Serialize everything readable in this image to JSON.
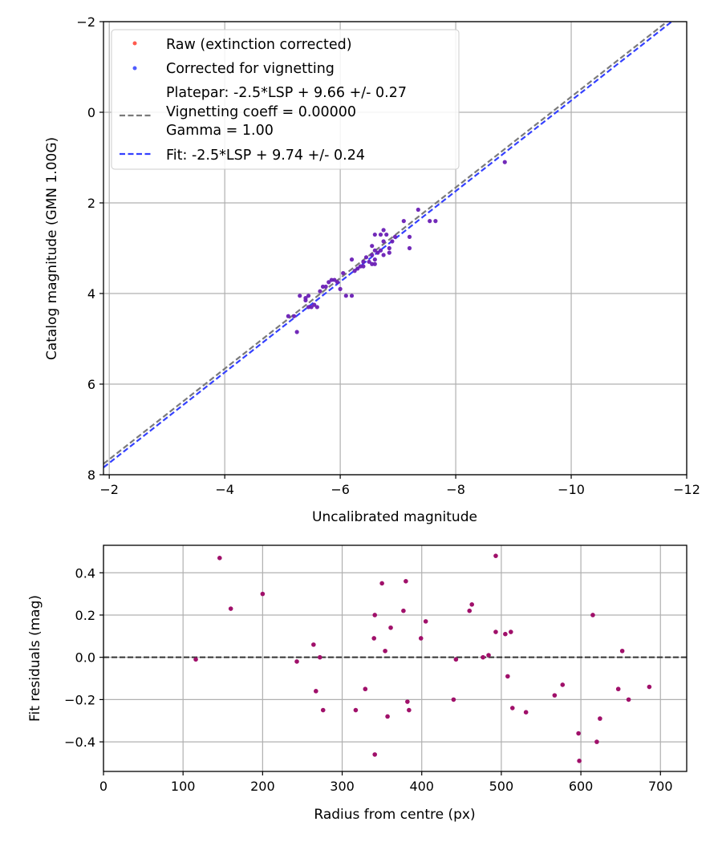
{
  "chart_data": [
    {
      "type": "scatter",
      "xlabel": "Uncalibrated magnitude",
      "ylabel": "Catalog magnitude (GMN 1.00G)",
      "xlim": [
        -1.9,
        -12.0
      ],
      "ylim": [
        8.0,
        -2.0
      ],
      "xticks": [
        -2,
        -4,
        -6,
        -8,
        -10,
        -12
      ],
      "xtick_labels": [
        "−2",
        "−4",
        "−6",
        "−8",
        "−10",
        "−12"
      ],
      "yticks": [
        -2,
        0,
        2,
        4,
        6,
        8
      ],
      "ytick_labels": [
        "−2",
        "0",
        "2",
        "4",
        "6",
        "8"
      ],
      "grid": true,
      "legend_position": "top-left",
      "legend": {
        "raw": "Raw (extinction corrected)",
        "corrected": "Corrected for vignetting",
        "platepar_line1": "Platepar: -2.5*LSP + 9.66 +/- 0.27",
        "platepar_line2": "Vignetting coeff = 0.00000",
        "platepar_line3": "Gamma = 1.00",
        "fit": "Fit: -2.5*LSP + 9.74 +/- 0.24"
      },
      "colors": {
        "raw": "#ff5a4e",
        "corrected": "#4f5cff",
        "overlap": "#6a1fb5",
        "platepar": "#7a7a7a",
        "fit": "#3440ff"
      },
      "platepar_line": {
        "slope": 1.0,
        "intercept": 9.66
      },
      "fit_line": {
        "slope": 1.0,
        "intercept": 9.74
      },
      "series": [
        {
          "name": "Corrected for vignetting",
          "x": [
            -8.85,
            -7.35,
            -7.1,
            -7.65,
            -7.55,
            -7.2,
            -7.2,
            -6.95,
            -6.9,
            -6.85,
            -6.75,
            -6.7,
            -6.8,
            -6.75,
            -6.6,
            -6.55,
            -6.6,
            -6.7,
            -6.85,
            -6.75,
            -6.6,
            -6.5,
            -6.45,
            -6.55,
            -6.4,
            -6.4,
            -6.3,
            -6.2,
            -6.25,
            -6.05,
            -6.0,
            -5.95,
            -5.9,
            -5.85,
            -5.8,
            -5.75,
            -5.7,
            -5.65,
            -5.55,
            -5.5,
            -5.45,
            -5.4,
            -5.45,
            -5.4,
            -5.3,
            -5.2,
            -5.1,
            -6.1,
            -6.2,
            -5.25,
            -6.6,
            -6.55,
            -6.35,
            -6.65,
            -5.6
          ],
          "y": [
            1.1,
            2.15,
            2.4,
            2.4,
            2.4,
            2.75,
            3.0,
            2.75,
            2.85,
            3.1,
            2.6,
            2.7,
            2.7,
            2.85,
            2.7,
            2.95,
            3.05,
            3.05,
            3.0,
            3.15,
            3.25,
            3.3,
            3.2,
            3.35,
            3.3,
            3.4,
            3.45,
            3.25,
            3.5,
            3.55,
            3.9,
            3.75,
            3.7,
            3.7,
            3.75,
            3.85,
            3.85,
            3.95,
            4.25,
            4.3,
            4.3,
            4.1,
            4.05,
            4.15,
            4.05,
            4.5,
            4.5,
            4.05,
            4.05,
            4.85,
            3.35,
            3.15,
            3.4,
            3.1,
            4.3
          ]
        }
      ]
    },
    {
      "type": "scatter",
      "xlabel": "Radius from centre (px)",
      "ylabel": "Fit residuals (mag)",
      "xlim": [
        0,
        733
      ],
      "ylim": [
        -0.54,
        0.53
      ],
      "xticks": [
        0,
        100,
        200,
        300,
        400,
        500,
        600,
        700
      ],
      "xtick_labels": [
        "0",
        "100",
        "200",
        "300",
        "400",
        "500",
        "600",
        "700"
      ],
      "yticks": [
        -0.4,
        -0.2,
        0.0,
        0.2,
        0.4
      ],
      "ytick_labels": [
        "−0.4",
        "−0.2",
        "0.0",
        "0.2",
        "0.4"
      ],
      "grid": true,
      "colors": {
        "points": "#a0106a",
        "zero_line": "#333333"
      },
      "series": [
        {
          "name": "residuals",
          "x": [
            116,
            146,
            160,
            200,
            243,
            264,
            267,
            272,
            276,
            317,
            329,
            340,
            341,
            341,
            350,
            354,
            357,
            361,
            377,
            380,
            382,
            384,
            399,
            405,
            440,
            443,
            460,
            463,
            477,
            484,
            493,
            493,
            505,
            508,
            512,
            514,
            531,
            567,
            577,
            597,
            598,
            615,
            620,
            624,
            647,
            652,
            660,
            686
          ],
          "y": [
            -0.01,
            0.47,
            0.23,
            0.3,
            -0.02,
            0.06,
            -0.16,
            0.0,
            -0.25,
            -0.25,
            -0.15,
            0.09,
            0.2,
            -0.46,
            0.35,
            0.03,
            -0.28,
            0.14,
            0.22,
            0.36,
            -0.21,
            -0.25,
            0.09,
            0.17,
            -0.2,
            -0.01,
            0.22,
            0.25,
            0.0,
            0.01,
            0.12,
            0.48,
            0.11,
            -0.09,
            0.12,
            -0.24,
            -0.26,
            -0.18,
            -0.13,
            -0.36,
            -0.49,
            0.2,
            -0.4,
            -0.29,
            -0.15,
            0.03,
            -0.2,
            -0.14
          ]
        }
      ]
    }
  ]
}
